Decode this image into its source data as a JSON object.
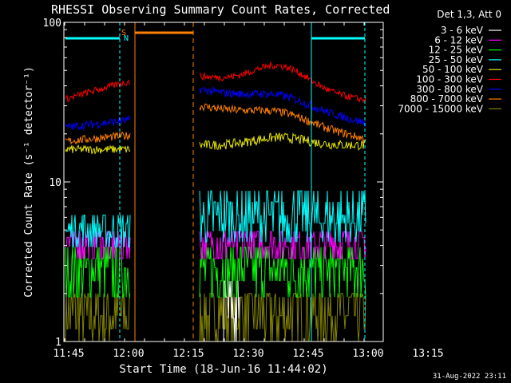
{
  "chart_data": {
    "type": "line",
    "title": "RHESSI Observing Summary Count Rates, Corrected",
    "xlabel": "Start Time (18-Jun-16 11:44:02)",
    "ylabel": "Corrected Count Rate (s⁻¹ detector⁻¹)",
    "yscale": "log",
    "ylim": [
      1,
      100
    ],
    "y_ticks": [
      {
        "value": 1,
        "label": "1"
      },
      {
        "value": 10,
        "label": "10"
      },
      {
        "value": 100,
        "label": "100"
      }
    ],
    "x_ticks": [
      "11:45",
      "12:00",
      "12:15",
      "12:30",
      "12:45",
      "13:00",
      "13:15"
    ],
    "grid": false,
    "timestamp": "31-Aug-2022 23:11",
    "legend": {
      "position": "top-right",
      "title": "Det 1,3, Att 0",
      "entries": [
        {
          "label": "3 - 6 keV",
          "color": "#ffffff"
        },
        {
          "label": "6 - 12 keV",
          "color": "#ff00ff"
        },
        {
          "label": "12 - 25 keV",
          "color": "#00ff00"
        },
        {
          "label": "25 - 50 keV",
          "color": "#00ffff"
        },
        {
          "label": "50 - 100 keV",
          "color": "#e6e600"
        },
        {
          "label": "100 - 300 keV",
          "color": "#ff0000"
        },
        {
          "label": "300 - 800 keV",
          "color": "#0000ff"
        },
        {
          "label": "800 - 7000 keV",
          "color": "#ff7f00"
        },
        {
          "label": "7000 - 15000 keV",
          "color": "#808000"
        }
      ]
    },
    "markers": {
      "S": {
        "label": "S",
        "color": "#ff8000"
      },
      "N": {
        "label": "N",
        "color": "#00ffff"
      }
    },
    "approximate_levels": [
      {
        "band": "100 - 300 keV",
        "before_gap": 34,
        "after_gap_start": 48,
        "after_gap_peak": 52,
        "after_gap_end": 34
      },
      {
        "band": "300 - 800 keV",
        "before_gap": 22,
        "after_gap_start": 38,
        "after_gap_end": 23
      },
      {
        "band": "800 - 7000 keV",
        "before_gap": 19,
        "after_gap_start": 30,
        "after_gap_end": 19
      },
      {
        "band": "50 - 100 keV",
        "before_gap": 16,
        "after_gap_level": 17
      },
      {
        "band": "25 - 50 keV",
        "before_gap": 5.5,
        "after_gap_level": 5.5
      },
      {
        "band": "12 - 25 keV",
        "before_gap": 3.3,
        "after_gap_level": 3.3
      },
      {
        "band": "6 - 12 keV",
        "before_gap": 4.2,
        "after_gap_level": 4.2
      },
      {
        "band": "7000 - 15000 keV",
        "before_gap": 1.5,
        "after_gap_level": 1.5
      },
      {
        "band": "3 - 6 keV",
        "after_gap_level": 1.4
      }
    ]
  }
}
